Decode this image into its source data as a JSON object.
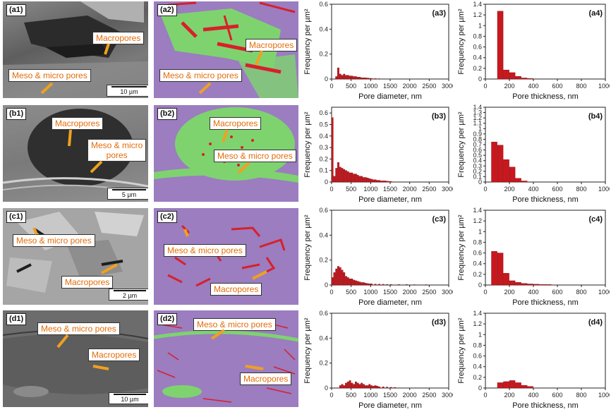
{
  "images": [
    {
      "row": "a",
      "sem_label": "(a1)",
      "seg_label": "(a2)",
      "scale": "10 µm",
      "callouts_sem": [
        {
          "text": "Macropores",
          "key": "macropores"
        },
        {
          "text": "Meso & micro pores",
          "key": "meso"
        }
      ],
      "callouts_seg": [
        {
          "text": "Macropores",
          "key": "macropores"
        },
        {
          "text": "Meso & micro pores",
          "key": "meso"
        }
      ]
    },
    {
      "row": "b",
      "sem_label": "(b1)",
      "seg_label": "(b2)",
      "scale": "5 µm",
      "callouts_sem": [
        {
          "text": "Macropores",
          "key": "macropores"
        },
        {
          "text": "Meso & micro\npores",
          "key": "meso"
        }
      ],
      "callouts_seg": [
        {
          "text": "Macropores",
          "key": "macropores"
        },
        {
          "text": "Meso & micro pores",
          "key": "meso"
        }
      ]
    },
    {
      "row": "c",
      "sem_label": "(c1)",
      "seg_label": "(c2)",
      "scale": "2 µm",
      "callouts_sem": [
        {
          "text": "Meso & micro pores",
          "key": "meso"
        },
        {
          "text": "Macropores",
          "key": "macropores"
        }
      ],
      "callouts_seg": [
        {
          "text": "Meso & micro pores",
          "key": "meso"
        },
        {
          "text": "Macropores",
          "key": "macropores"
        }
      ]
    },
    {
      "row": "d",
      "sem_label": "(d1)",
      "seg_label": "(d2)",
      "scale": "10 µm",
      "callouts_sem": [
        {
          "text": "Meso & micro pores",
          "key": "meso"
        },
        {
          "text": "Macropores",
          "key": "macropores"
        }
      ],
      "callouts_seg": [
        {
          "text": "Meso & micro pores",
          "key": "meso"
        },
        {
          "text": "Macropores",
          "key": "macropores"
        }
      ]
    }
  ],
  "colors": {
    "bar": "#c8181e",
    "bar_edge": "#7a0c10",
    "arrow": "#f0a020",
    "callout_text": "#e36c09",
    "seg_background": "#9b7dc0",
    "seg_organic": "#7ed36f",
    "seg_pore": "#d8202a"
  },
  "chart_data": [
    {
      "id": "a3",
      "panel_label": "(a3)",
      "type": "bar",
      "xlabel": "Pore diameter, nm",
      "ylabel": "Frequency per µm²",
      "xlim": [
        0,
        3000
      ],
      "ylim": [
        0,
        0.6
      ],
      "xticks": [
        0,
        500,
        1000,
        1500,
        2000,
        2500,
        3000
      ],
      "yticks": [
        0,
        0.2,
        0.4,
        0.6
      ],
      "bin_width": 50,
      "x": [
        100,
        150,
        200,
        250,
        300,
        350,
        400,
        450,
        500,
        550,
        600,
        650,
        700,
        750,
        800,
        850,
        900,
        950,
        1000,
        1100,
        1200
      ],
      "values": [
        0.02,
        0.09,
        0.04,
        0.03,
        0.04,
        0.03,
        0.03,
        0.025,
        0.025,
        0.02,
        0.02,
        0.015,
        0.015,
        0.01,
        0.01,
        0.01,
        0.008,
        0.006,
        0.005,
        0.004,
        0.003
      ]
    },
    {
      "id": "a4",
      "panel_label": "(a4)",
      "type": "bar",
      "xlabel": "Pore thickness, nm",
      "ylabel": "Frequency per µm²",
      "xlim": [
        0,
        1000
      ],
      "ylim": [
        0,
        1.4
      ],
      "xticks": [
        0,
        200,
        400,
        600,
        800,
        1000
      ],
      "yticks": [
        0,
        0.2,
        0.4,
        0.6,
        0.8,
        1.0,
        1.2,
        1.4
      ],
      "bin_width": 50,
      "x": [
        100,
        150,
        200,
        250,
        300,
        350
      ],
      "values": [
        1.27,
        0.17,
        0.12,
        0.05,
        0.02,
        0.01
      ]
    },
    {
      "id": "b3",
      "panel_label": "(b3)",
      "type": "bar",
      "xlabel": "Pore diameter, nm",
      "ylabel": "Frequency per µm²",
      "xlim": [
        0,
        3000
      ],
      "ylim": [
        0,
        0.65
      ],
      "xticks": [
        0,
        500,
        1000,
        1500,
        2000,
        2500,
        3000
      ],
      "yticks": [
        0,
        0.1,
        0.2,
        0.3,
        0.4,
        0.5,
        0.6
      ],
      "bin_width": 50,
      "x": [
        0,
        50,
        100,
        150,
        200,
        250,
        300,
        350,
        400,
        450,
        500,
        550,
        600,
        650,
        700,
        750,
        800,
        850,
        900,
        950,
        1000,
        1050,
        1100,
        1150,
        1200,
        1250,
        1300,
        1350,
        1400,
        1450,
        1500
      ],
      "values": [
        0.56,
        0.05,
        0.12,
        0.17,
        0.13,
        0.12,
        0.11,
        0.1,
        0.09,
        0.08,
        0.08,
        0.07,
        0.07,
        0.06,
        0.05,
        0.05,
        0.04,
        0.04,
        0.035,
        0.03,
        0.025,
        0.02,
        0.02,
        0.015,
        0.015,
        0.01,
        0.01,
        0.01,
        0.008,
        0.006,
        0.005
      ]
    },
    {
      "id": "b4",
      "panel_label": "(b4)",
      "type": "bar",
      "xlabel": "Pore thickness, nm",
      "ylabel": "Frequency per µm²",
      "xlim": [
        0,
        1000
      ],
      "ylim": [
        0,
        1.4
      ],
      "xticks": [
        0,
        200,
        400,
        600,
        800,
        1000
      ],
      "yticks": [
        0,
        0.1,
        0.2,
        0.3,
        0.4,
        0.5,
        0.6,
        0.7,
        0.8,
        0.9,
        1.0,
        1.1,
        1.2,
        1.3,
        1.4
      ],
      "bin_width": 50,
      "x": [
        50,
        100,
        150,
        200,
        250,
        300
      ],
      "values": [
        0.75,
        0.69,
        0.42,
        0.28,
        0.07,
        0.02
      ]
    },
    {
      "id": "c3",
      "panel_label": "(c3)",
      "type": "bar",
      "xlabel": "Pore diameter, nm",
      "ylabel": "Frequency per µm²",
      "xlim": [
        0,
        3000
      ],
      "ylim": [
        0,
        0.6
      ],
      "xticks": [
        0,
        500,
        1000,
        1500,
        2000,
        2500,
        3000
      ],
      "yticks": [
        0,
        0.2,
        0.4,
        0.6
      ],
      "bin_width": 50,
      "x": [
        0,
        50,
        100,
        150,
        200,
        250,
        300,
        350,
        400,
        450,
        500,
        550,
        600,
        650,
        700,
        750,
        800,
        850,
        900,
        950,
        1000,
        1100,
        1200,
        1300,
        1400,
        1500,
        1700,
        1900,
        2100,
        2400
      ],
      "values": [
        0.06,
        0.1,
        0.13,
        0.15,
        0.14,
        0.12,
        0.1,
        0.07,
        0.06,
        0.05,
        0.05,
        0.04,
        0.035,
        0.03,
        0.025,
        0.02,
        0.02,
        0.015,
        0.012,
        0.01,
        0.01,
        0.008,
        0.007,
        0.006,
        0.005,
        0.005,
        0.004,
        0.004,
        0.003,
        0.003
      ]
    },
    {
      "id": "c4",
      "panel_label": "(c4)",
      "type": "bar",
      "xlabel": "Pore thickness, nm",
      "ylabel": "Frequency per µm²",
      "xlim": [
        0,
        1000
      ],
      "ylim": [
        0,
        1.4
      ],
      "xticks": [
        0,
        200,
        400,
        600,
        800,
        1000
      ],
      "yticks": [
        0,
        0.2,
        0.4,
        0.6,
        0.8,
        1.0,
        1.2,
        1.4
      ],
      "bin_width": 50,
      "x": [
        50,
        100,
        150,
        200,
        250,
        300,
        350,
        400,
        450,
        500
      ],
      "values": [
        0.63,
        0.6,
        0.22,
        0.08,
        0.05,
        0.03,
        0.02,
        0.015,
        0.01,
        0.01
      ]
    },
    {
      "id": "d3",
      "panel_label": "(d3)",
      "type": "bar",
      "xlabel": "Pore diameter, nm",
      "ylabel": "Frequency per µm²",
      "xlim": [
        0,
        3000
      ],
      "ylim": [
        0,
        0.6
      ],
      "xticks": [
        0,
        500,
        1000,
        1500,
        2000,
        2500,
        3000
      ],
      "yticks": [
        0,
        0.2,
        0.4,
        0.6
      ],
      "bin_width": 50,
      "x": [
        200,
        250,
        300,
        350,
        400,
        450,
        500,
        550,
        600,
        650,
        700,
        750,
        800,
        850,
        900,
        950,
        1000,
        1050,
        1100,
        1150,
        1200,
        1300,
        1400,
        1500,
        1600
      ],
      "values": [
        0.02,
        0.03,
        0.02,
        0.04,
        0.05,
        0.06,
        0.04,
        0.03,
        0.05,
        0.04,
        0.03,
        0.04,
        0.03,
        0.02,
        0.02,
        0.03,
        0.02,
        0.015,
        0.02,
        0.015,
        0.01,
        0.01,
        0.008,
        0.006,
        0.005
      ]
    },
    {
      "id": "d4",
      "panel_label": "(d4)",
      "type": "bar",
      "xlabel": "Pore thickness, nm",
      "ylabel": "Frequency per µm²",
      "xlim": [
        0,
        1000
      ],
      "ylim": [
        0,
        1.4
      ],
      "xticks": [
        0,
        200,
        400,
        600,
        800,
        1000
      ],
      "yticks": [
        0,
        0.2,
        0.4,
        0.6,
        0.8,
        1.0,
        1.2,
        1.4
      ],
      "bin_width": 50,
      "x": [
        100,
        150,
        200,
        250,
        300,
        350
      ],
      "values": [
        0.1,
        0.12,
        0.14,
        0.1,
        0.05,
        0.03
      ]
    }
  ]
}
